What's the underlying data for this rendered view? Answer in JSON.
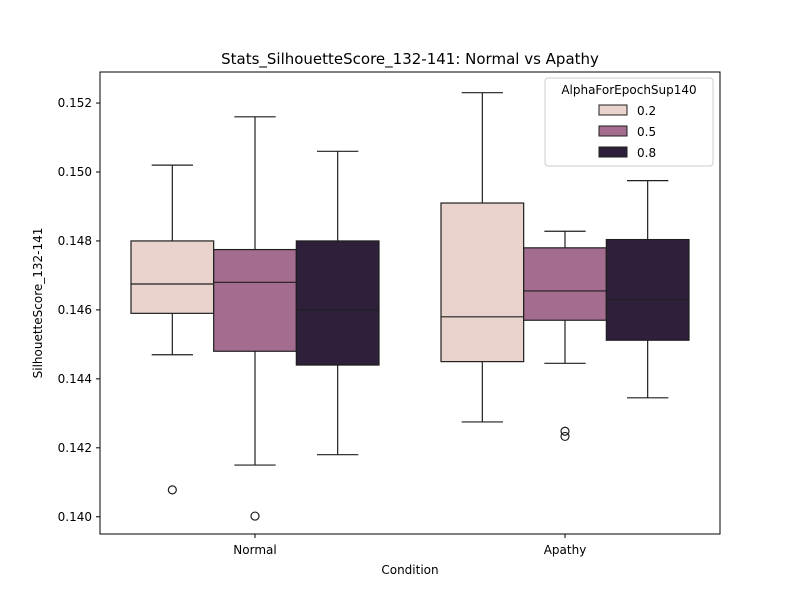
{
  "chart_data": {
    "type": "box",
    "title": "Stats_SilhouetteScore_132-141: Normal vs Apathy",
    "xlabel": "Condition",
    "ylabel": "SilhouetteScore_132-141",
    "categories": [
      "Normal",
      "Apathy"
    ],
    "ylim": [
      0.1395,
      0.1529
    ],
    "yticks": [
      "0.140",
      "0.142",
      "0.144",
      "0.146",
      "0.148",
      "0.150",
      "0.152"
    ],
    "grid": false,
    "legend": {
      "title": "AlphaForEpochSup140",
      "position": "top-right"
    },
    "series": [
      {
        "name": "0.2",
        "color": "#ebd3cd",
        "boxes": [
          {
            "whislo": 0.1447,
            "q1": 0.1459,
            "med": 0.14675,
            "q3": 0.148,
            "whishi": 0.1502,
            "fliers": [
              0.14078
            ]
          },
          {
            "whislo": 0.14275,
            "q1": 0.1445,
            "med": 0.1458,
            "q3": 0.1491,
            "whishi": 0.1523,
            "fliers": []
          }
        ]
      },
      {
        "name": "0.5",
        "color": "#a46c8e",
        "boxes": [
          {
            "whislo": 0.1415,
            "q1": 0.1448,
            "med": 0.1468,
            "q3": 0.14775,
            "whishi": 0.1516,
            "fliers": [
              0.14002
            ]
          },
          {
            "whislo": 0.14445,
            "q1": 0.1457,
            "med": 0.14655,
            "q3": 0.1478,
            "whishi": 0.14828,
            "fliers": [
              0.14248,
              0.14233
            ]
          }
        ]
      },
      {
        "name": "0.8",
        "color": "#2e1f3a",
        "boxes": [
          {
            "whislo": 0.1418,
            "q1": 0.1444,
            "med": 0.146,
            "q3": 0.148,
            "whishi": 0.1506,
            "fliers": []
          },
          {
            "whislo": 0.14345,
            "q1": 0.14512,
            "med": 0.1463,
            "q3": 0.14804,
            "whishi": 0.14975,
            "fliers": []
          }
        ]
      }
    ]
  }
}
